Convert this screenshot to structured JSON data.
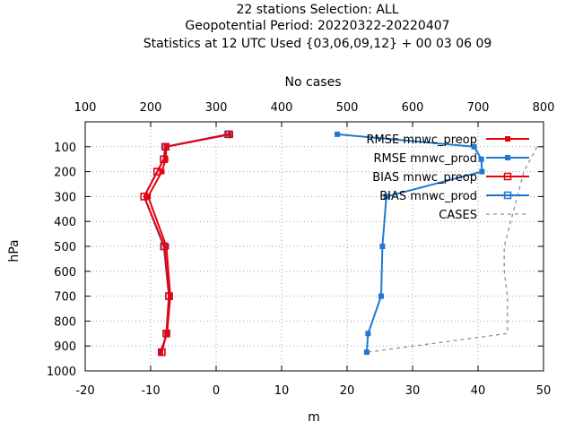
{
  "chart_data": {
    "type": "line",
    "title": [
      "22 stations Selection: ALL",
      "Geopotential  Period: 20220322-20220407",
      "Statistics at 12 UTC  Used {03,06,09,12} + 00 03 06 09"
    ],
    "xlabel": "m",
    "x2label": "No cases",
    "ylabel": "hPa",
    "xlim": [
      -20,
      50
    ],
    "x2lim": [
      100,
      800
    ],
    "ylim": [
      1000,
      0
    ],
    "xticks": [
      "-20",
      "-10",
      "0",
      "10",
      "20",
      "30",
      "40",
      "50"
    ],
    "x2ticks": [
      "100",
      "200",
      "300",
      "400",
      "500",
      "600",
      "700",
      "800"
    ],
    "yticks": [
      "100",
      "200",
      "300",
      "400",
      "500",
      "600",
      "700",
      "800",
      "900",
      "1000"
    ],
    "grid": true,
    "legend_position": "top-right",
    "series": [
      {
        "name": "RMSE mnwc_preop",
        "color": "#e8000b",
        "marker": "filled-square",
        "axis": "x",
        "points": [
          [
            2.2,
            50
          ],
          [
            -7.6,
            100
          ],
          [
            -7.7,
            150
          ],
          [
            -8.3,
            200
          ],
          [
            -10.4,
            300
          ],
          [
            -7.6,
            500
          ],
          [
            -7.0,
            700
          ],
          [
            -7.5,
            850
          ],
          [
            -8.5,
            925
          ]
        ]
      },
      {
        "name": "RMSE mnwc_prod",
        "color": "#1f78d1",
        "marker": "filled-square",
        "axis": "x",
        "points": [
          [
            18.5,
            50
          ],
          [
            39.4,
            100
          ],
          [
            40.5,
            150
          ],
          [
            40.6,
            200
          ],
          [
            26.0,
            300
          ],
          [
            25.4,
            500
          ],
          [
            25.2,
            700
          ],
          [
            23.2,
            850
          ],
          [
            23.0,
            925
          ]
        ]
      },
      {
        "name": "BIAS mnwc_preop",
        "color": "#e8000b",
        "marker": "open-square",
        "axis": "x",
        "points": [
          [
            2.0,
            50
          ],
          [
            -7.7,
            100
          ],
          [
            -8.0,
            150
          ],
          [
            -9.0,
            200
          ],
          [
            -11.0,
            300
          ],
          [
            -7.9,
            500
          ],
          [
            -7.2,
            700
          ],
          [
            -7.6,
            850
          ],
          [
            -8.3,
            925
          ]
        ]
      },
      {
        "name": "BIAS mnwc_prod",
        "color": "#1f78d1",
        "marker": "open-square",
        "axis": "x",
        "points": [
          [
            1.8,
            50
          ],
          [
            -7.8,
            100
          ],
          [
            -8.0,
            150
          ],
          [
            -9.0,
            200
          ],
          [
            -11.0,
            300
          ],
          [
            -8.0,
            500
          ],
          [
            -7.2,
            700
          ],
          [
            -7.6,
            850
          ],
          [
            -8.3,
            925
          ]
        ]
      },
      {
        "name": "CASES",
        "color": "#909090",
        "marker": "none",
        "dashed": true,
        "axis": "x2",
        "points": [
          [
            790,
            100
          ],
          [
            780,
            150
          ],
          [
            770,
            200
          ],
          [
            760,
            300
          ],
          [
            750,
            400
          ],
          [
            740,
            500
          ],
          [
            740,
            600
          ],
          [
            745,
            700
          ],
          [
            745,
            850
          ],
          [
            530,
            925
          ]
        ]
      }
    ]
  }
}
